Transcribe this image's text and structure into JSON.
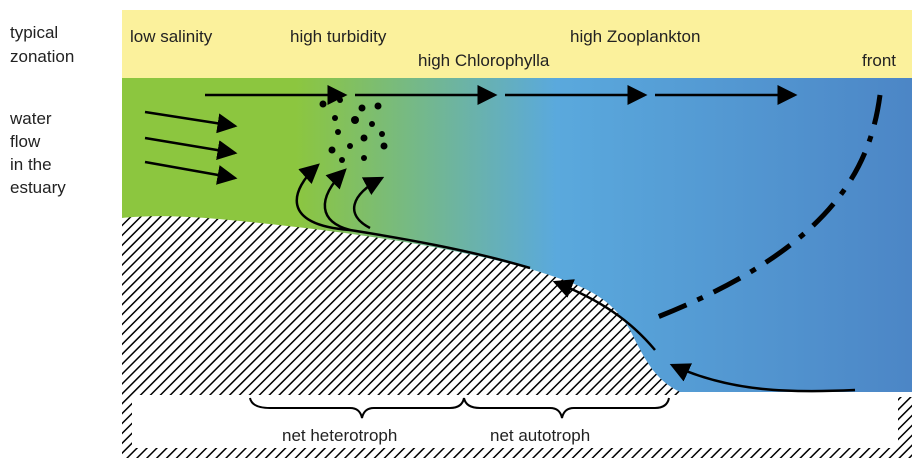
{
  "left_labels": {
    "zonation": [
      "typical",
      "zonation"
    ],
    "flow": [
      "water",
      "flow",
      "in the",
      "estuary"
    ]
  },
  "zones": [
    "low salinity",
    "high turbidity",
    "high Chlorophylla",
    "high Zooplankton",
    "front"
  ],
  "bottom_labels": [
    "net heterotroph",
    "net autotroph"
  ]
}
